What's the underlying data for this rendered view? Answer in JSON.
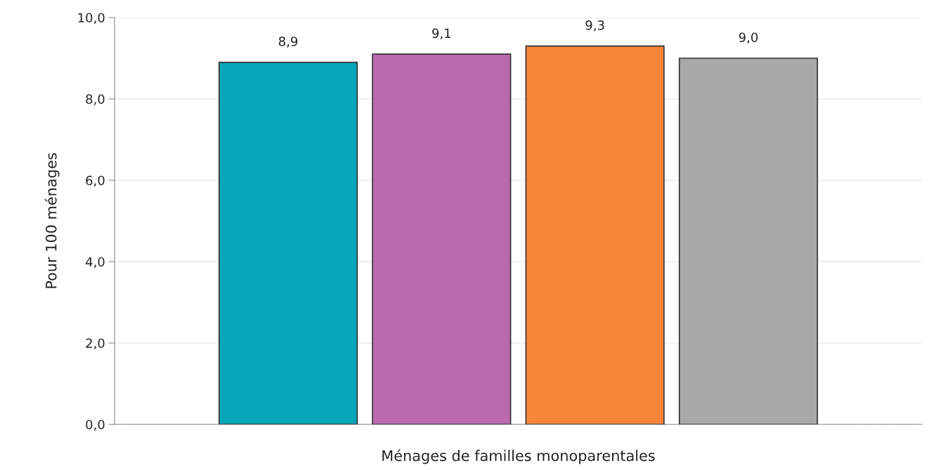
{
  "chart_data": {
    "type": "bar",
    "xlabel": "Ménages de familles monoparentales",
    "ylabel": "Pour 100 ménages",
    "categories": [
      null
    ],
    "series": [
      {
        "color": "#07a6b8",
        "values": [
          8.9
        ],
        "value_labels": [
          "8,9"
        ]
      },
      {
        "color": "#b96bad",
        "values": [
          9.1
        ],
        "value_labels": [
          "9,1"
        ]
      },
      {
        "color": "#f6853a",
        "values": [
          9.3
        ],
        "value_labels": [
          "9,3"
        ]
      },
      {
        "color": "#a9a9a9",
        "values": [
          9.0
        ],
        "value_labels": [
          "9,0"
        ]
      }
    ],
    "ylim": [
      0,
      10
    ],
    "yticks": [
      {
        "value": 0,
        "label": "0,0"
      },
      {
        "value": 2,
        "label": "2,0"
      },
      {
        "value": 4,
        "label": "4,0"
      },
      {
        "value": 6,
        "label": "6,0"
      },
      {
        "value": 8,
        "label": "8,0"
      },
      {
        "value": 10,
        "label": "10,0"
      }
    ],
    "grid": "y",
    "legend": false
  }
}
